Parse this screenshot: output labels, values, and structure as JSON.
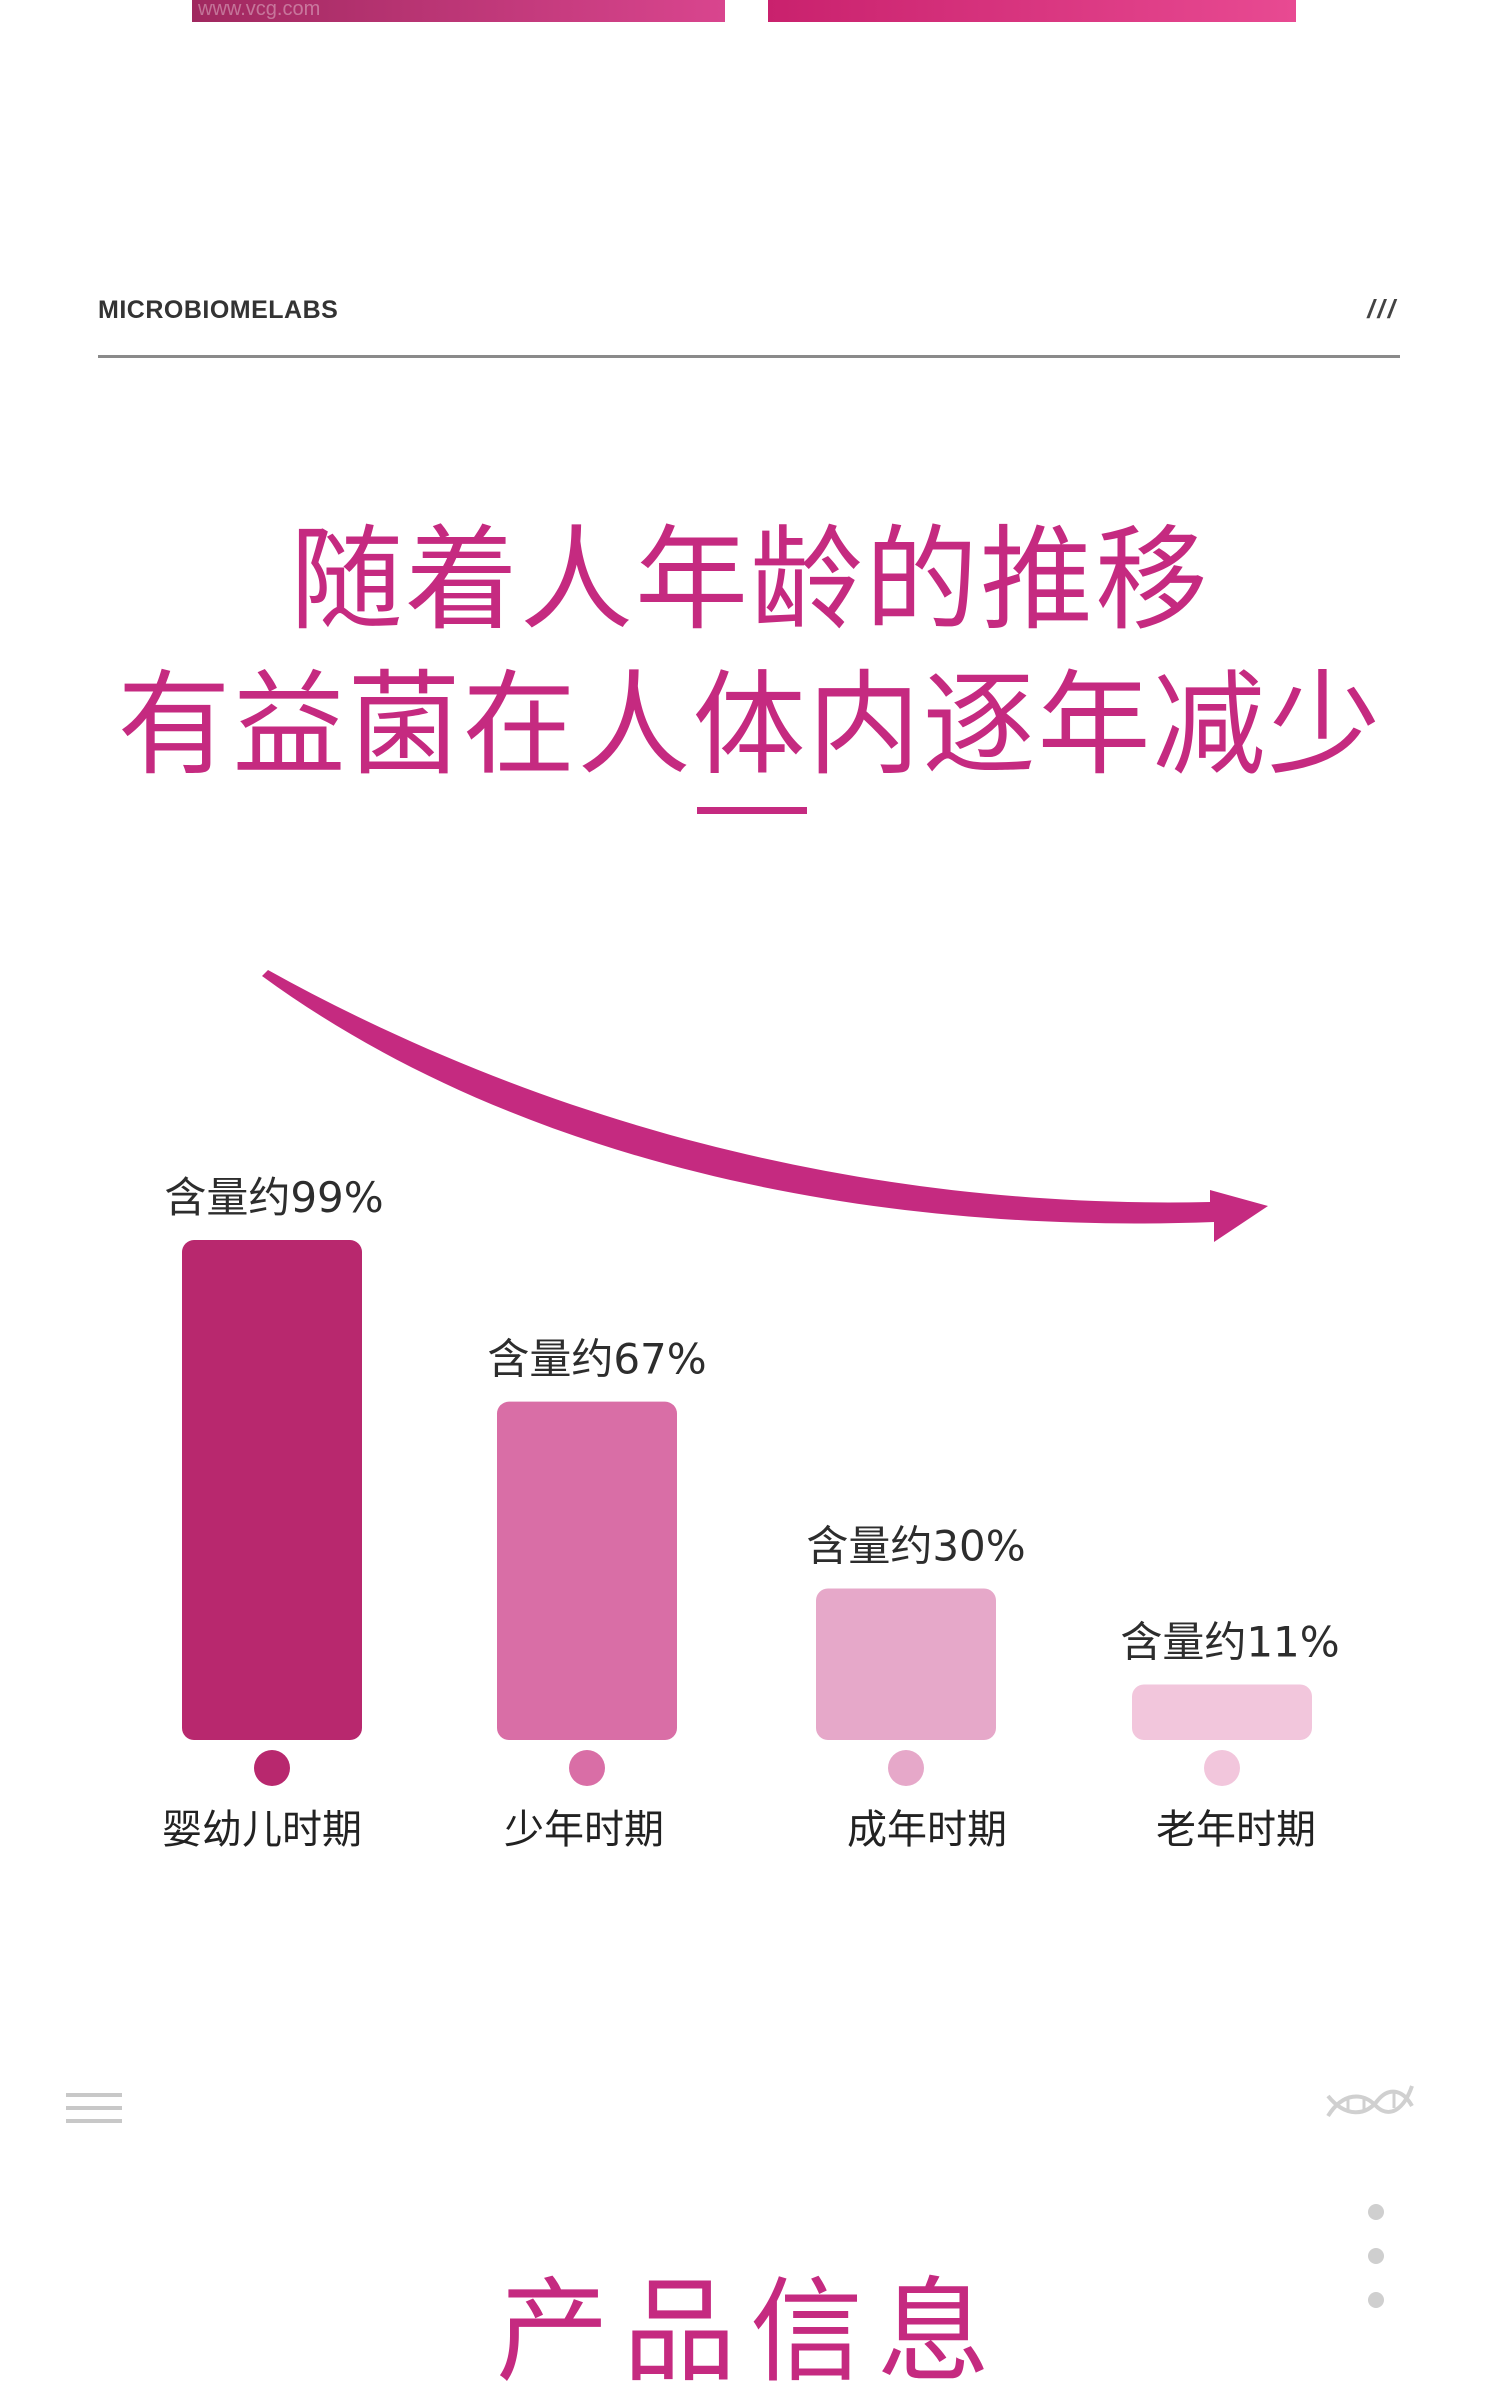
{
  "top_image": {
    "watermark": "www.vcg.com"
  },
  "header": {
    "brand": "MICROBIOMELABS",
    "mark": "///"
  },
  "headline": {
    "line1": "随着人年龄的推移",
    "line2": "有益菌在人体内逐年减少"
  },
  "chart_data": {
    "type": "bar",
    "title": "",
    "xlabel": "",
    "ylabel": "",
    "categories": [
      "婴幼儿时期",
      "少年时期",
      "成年时期",
      "老年时期"
    ],
    "values": [
      99,
      67,
      30,
      11
    ],
    "data_labels": [
      "含量约99%",
      "含量约67%",
      "含量约30%",
      "含量约11%"
    ],
    "unit": "%",
    "bar_colors": [
      "#b8286e",
      "#d96ea6",
      "#e6a8c9",
      "#f2c6dc"
    ],
    "dot_colors": [
      "#b8286e",
      "#d96ea6",
      "#e6a8c9",
      "#f2c6dc"
    ],
    "axis_line_colors": [
      "#c52a80",
      "#f0c6dc"
    ],
    "trend_arrow_color": "#c52a80",
    "grid": false,
    "legend": "none"
  },
  "footer": {
    "menu_icon": "menu-icon",
    "dna_icon": "dna-icon",
    "section_title": "产品信息"
  }
}
